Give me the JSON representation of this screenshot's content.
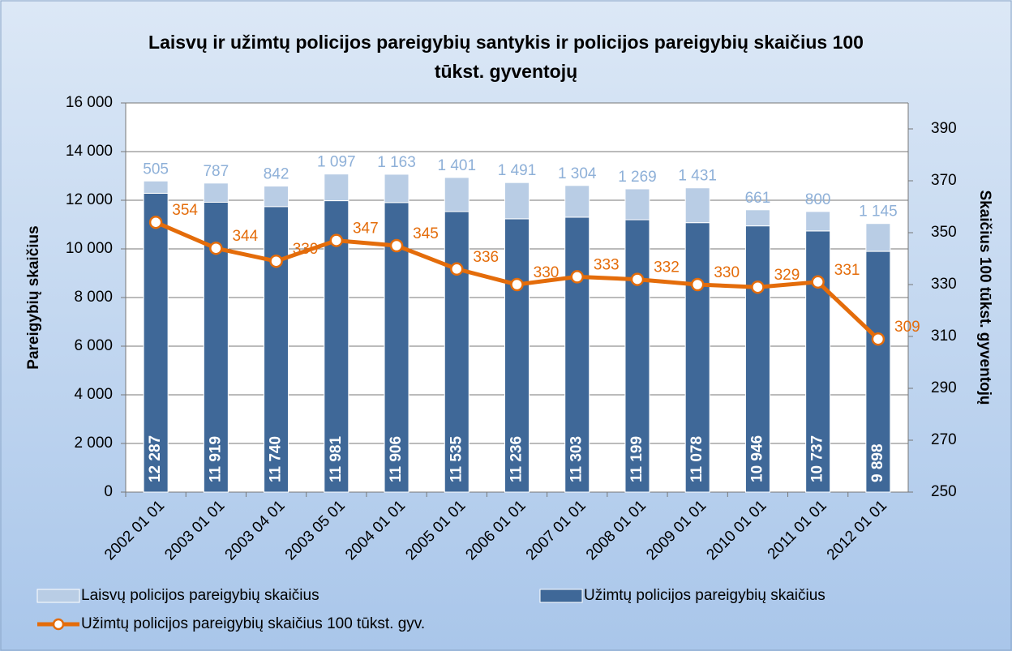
{
  "chart_data": {
    "type": "bar",
    "title": "Laisvų ir užimtų policijos pareigybių santykis ir policijos pareigybių skaičius 100 tūkst. gyventojų",
    "y_label": "Pareigybių skaičius",
    "y2_label": "Skaičius 100 tūkst. gyventojų",
    "categories": [
      "2002 01 01",
      "2003 01 01",
      "2003 04 01",
      "2003 05 01",
      "2004 01 01",
      "2005 01 01",
      "2006 01 01",
      "2007 01 01",
      "2008 01 01",
      "2009 01 01",
      "2010 01 01",
      "2011 01 01",
      "2012 01 01"
    ],
    "stacked": true,
    "series": [
      {
        "name": "Užimtų policijos pareigybių skaičius",
        "color": "#3f6898",
        "type": "bar",
        "values": [
          12287,
          11919,
          11740,
          11981,
          11906,
          11535,
          11236,
          11303,
          11199,
          11078,
          10946,
          10737,
          9898
        ],
        "value_labels": [
          "12 287",
          "11 919",
          "11 740",
          "11 981",
          "11 906",
          "11 535",
          "11 236",
          "11 303",
          "11 199",
          "11 078",
          "10 946",
          "10 737",
          "9 898"
        ]
      },
      {
        "name": "Laisvų policijos pareigybių skaičius",
        "color": "#b9cde5",
        "type": "bar",
        "values": [
          505,
          787,
          842,
          1097,
          1163,
          1401,
          1491,
          1304,
          1269,
          1431,
          661,
          800,
          1145
        ],
        "value_labels": [
          "505",
          "787",
          "842",
          "1 097",
          "1 163",
          "1 401",
          "1 491",
          "1 304",
          "1 269",
          "1 431",
          "661",
          "800",
          "1 145"
        ]
      },
      {
        "name": "Užimtų policijos pareigybių skaičius 100 tūkst. gyv.",
        "color": "#e46c0a",
        "type": "line",
        "axis": "y2",
        "values": [
          354,
          344,
          339,
          347,
          345,
          336,
          330,
          333,
          332,
          330,
          329,
          331,
          309
        ]
      }
    ],
    "ylim": [
      0,
      16000
    ],
    "yticks": [
      0,
      {
        "value": 2000,
        "label": "2 000"
      },
      {
        "value": 4000,
        "label": "4 000"
      },
      {
        "value": 6000,
        "label": "6 000"
      },
      {
        "value": 8000,
        "label": "8 000"
      },
      {
        "value": 10000,
        "label": "10 000"
      },
      {
        "value": 12000,
        "label": "12 000"
      },
      {
        "value": 14000,
        "label": "14 000"
      },
      {
        "value": 16000,
        "label": "16 000"
      }
    ],
    "y2lim": [
      250,
      400
    ],
    "y2ticks": [
      250,
      270,
      290,
      310,
      330,
      350,
      370,
      390
    ],
    "grid": true
  }
}
